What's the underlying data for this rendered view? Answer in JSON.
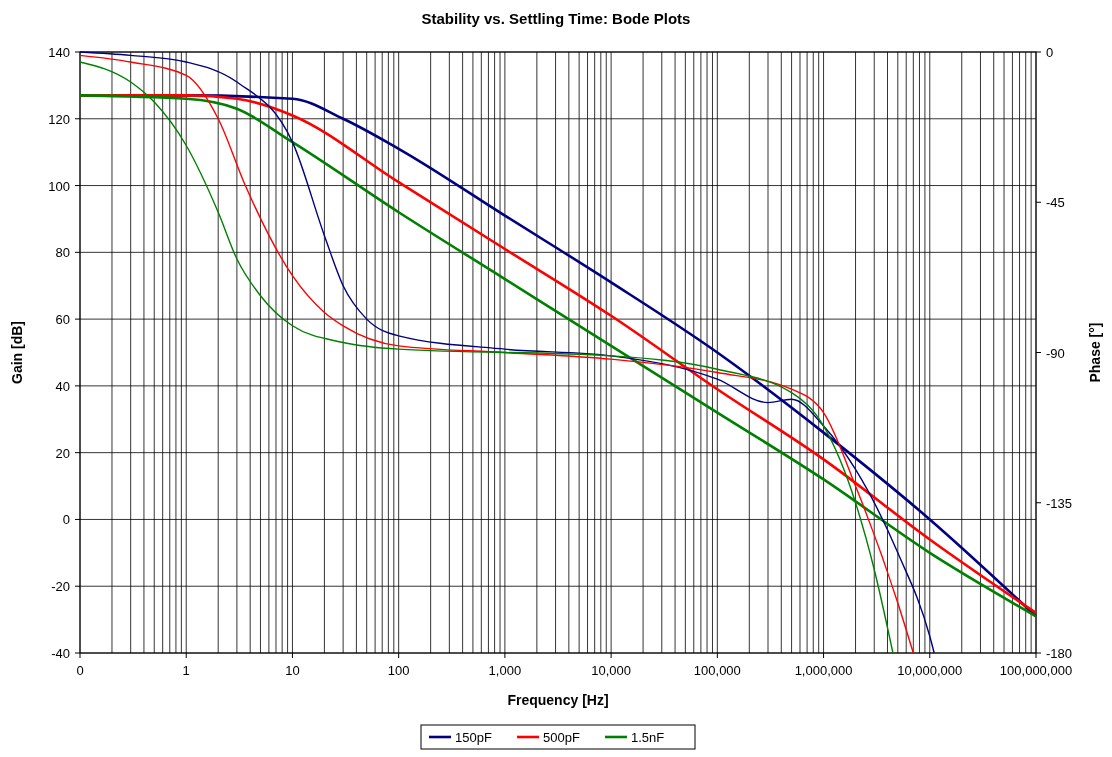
{
  "chart_data": {
    "type": "line",
    "title": "Stability vs. Settling Time: Bode Plots",
    "xlabel": "Frequency [Hz]",
    "ylabel": "Gain [dB]",
    "y2label": "Phase [°]",
    "log": "x",
    "grid": true,
    "legend": "bottom",
    "xlim": [
      0.1,
      100000000
    ],
    "xticks": [
      {
        "value": 0.1,
        "label": "0"
      },
      1,
      10,
      100,
      {
        "value": 1000,
        "label": "1,000"
      },
      {
        "value": 10000,
        "label": "10,000"
      },
      {
        "value": 100000,
        "label": "100,000"
      },
      {
        "value": 1000000,
        "label": "1,000,000"
      },
      {
        "value": 10000000,
        "label": "10,000,000"
      },
      {
        "value": 100000000,
        "label": "100,000,000"
      }
    ],
    "ylim": [
      -40,
      140
    ],
    "yticks": [
      -40,
      -20,
      0,
      20,
      40,
      60,
      80,
      100,
      120,
      140
    ],
    "y2lim": [
      -180,
      0
    ],
    "y2ticks": [
      -180,
      -135,
      -90,
      -45,
      0
    ],
    "series": [
      {
        "name": "150pF",
        "color": "#000080",
        "x": [
          0.1,
          1,
          10,
          30,
          100,
          1000,
          10000,
          100000,
          1000000,
          10000000,
          100000000
        ],
        "values": [
          127,
          127,
          126,
          120,
          111,
          91,
          71,
          50,
          26,
          0,
          -29
        ]
      },
      {
        "name": "500pF",
        "color": "#ff0000",
        "x": [
          0.1,
          1,
          3,
          10,
          100,
          1000,
          10000,
          100000,
          1000000,
          10000000,
          100000000
        ],
        "values": [
          127,
          127,
          126,
          121,
          101,
          81,
          61,
          39,
          18,
          -6,
          -28
        ]
      },
      {
        "name": "1.5nF",
        "color": "#008000",
        "x": [
          0.1,
          1,
          3,
          10,
          100,
          1000,
          10000,
          100000,
          1000000,
          10000000,
          100000000
        ],
        "values": [
          127,
          126,
          123,
          113,
          92,
          72,
          52,
          32,
          12,
          -10,
          -29
        ]
      },
      {
        "color": "#000080",
        "axis": "y2",
        "x": [
          0.1,
          0.3,
          1,
          3,
          10,
          20,
          30,
          50,
          100,
          1000,
          10000,
          100000,
          300000,
          500000,
          1000000,
          2000000,
          5000000,
          10000000,
          11000000
        ],
        "values": [
          0,
          -1,
          -3,
          -9,
          -27,
          -55,
          -70,
          -80,
          -85,
          -89,
          -91,
          -98,
          -105,
          -104,
          -112,
          -125,
          -150,
          -175,
          -180
        ]
      },
      {
        "color": "#ff0000",
        "axis": "y2",
        "x": [
          0.1,
          0.3,
          1,
          2,
          3.6,
          10,
          20,
          30,
          100,
          1000,
          10000,
          100000,
          500000,
          1000000,
          2000000,
          5000000,
          7000000
        ],
        "values": [
          -1,
          -3,
          -7,
          -20,
          -40,
          -67,
          -78,
          -82,
          -88,
          -90,
          -92,
          -96,
          -101,
          -108,
          -130,
          -165,
          -180
        ]
      },
      {
        "color": "#008000",
        "axis": "y2",
        "x": [
          0.1,
          0.3,
          0.5,
          1,
          2,
          3,
          5,
          10,
          30,
          100,
          10000,
          100000,
          500000,
          1000000,
          2000000,
          3000000,
          4500000
        ],
        "values": [
          -3,
          -9,
          -15,
          -28,
          -48,
          -62,
          -73,
          -82,
          -87,
          -89,
          -91,
          -95,
          -102,
          -112,
          -135,
          -155,
          -180
        ]
      }
    ]
  }
}
